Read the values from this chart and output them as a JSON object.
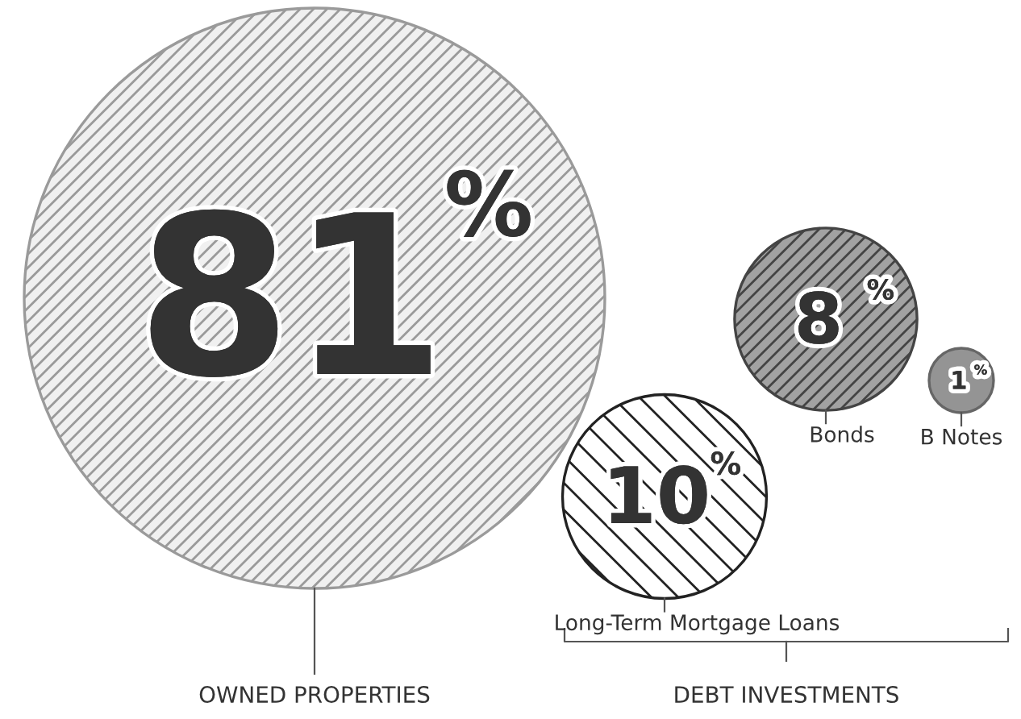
{
  "chart_data": {
    "type": "other",
    "categories": [
      "OWNED PROPERTIES",
      "Long-Term Mortgage Loans",
      "Bonds",
      "B Notes"
    ],
    "values": [
      81,
      10,
      8,
      1
    ],
    "value_labels": [
      "81%",
      "10%",
      "8%",
      "1%"
    ],
    "colors": [
      "#9a9a9a",
      "#222222",
      "#444444",
      "#666666"
    ],
    "annotations": [
      "DEBT INVESTMENTS"
    ]
  }
}
